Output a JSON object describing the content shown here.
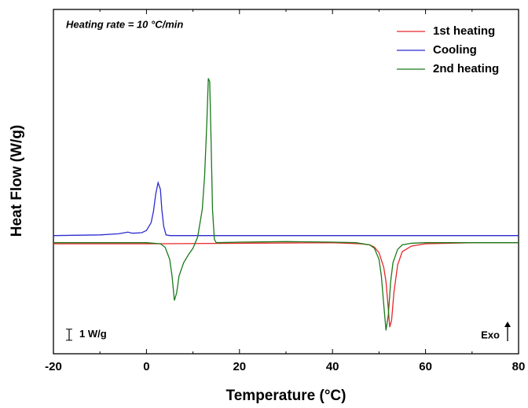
{
  "chart_data": {
    "type": "line",
    "x_label": "Temperature (°C)",
    "y_label": "Heat Flow (W/g)",
    "annotation": "Heating rate = 10 °C/min",
    "exo_label": "Exo",
    "scale_bar": {
      "value": 1,
      "label": "1 W/g"
    },
    "xlim": [
      -20,
      80
    ],
    "xticks": [
      -20,
      0,
      20,
      40,
      60,
      80
    ],
    "xminor": [
      -10,
      10,
      30,
      50,
      70
    ],
    "ylim": [
      -10,
      21
    ],
    "legend": "upper right",
    "series": [
      {
        "name": "1st heating",
        "color": "#e8262a",
        "x": [
          -20,
          0,
          20,
          40,
          46,
          48,
          49,
          50,
          51,
          51.5,
          52,
          52.3,
          52.7,
          53.2,
          54,
          55,
          57,
          60,
          70,
          80
        ],
        "values": [
          -0.1,
          -0.1,
          -0.05,
          0,
          -0.1,
          -0.2,
          -0.4,
          -0.9,
          -2.2,
          -3.5,
          -6,
          -7.6,
          -7.0,
          -4.5,
          -2.0,
          -0.8,
          -0.3,
          -0.1,
          0,
          0
        ]
      },
      {
        "name": "Cooling",
        "color": "#2b2bd0",
        "x": [
          -20,
          -10,
          -6,
          -4,
          -3,
          -1,
          0,
          1,
          1.5,
          2,
          2.5,
          3,
          3.3,
          3.7,
          4.2,
          5,
          20,
          60,
          80
        ],
        "values": [
          0.64,
          0.7,
          0.8,
          0.95,
          0.85,
          0.9,
          1.1,
          1.8,
          2.8,
          4.4,
          5.4,
          4.8,
          3.0,
          1.5,
          0.7,
          0.64,
          0.64,
          0.64,
          0.64
        ]
      },
      {
        "name": "2nd heating",
        "color": "#1a7a1a",
        "x": [
          -20,
          0,
          3,
          4,
          5,
          5.5,
          6,
          6.5,
          7,
          8,
          9,
          10,
          11,
          12,
          12.5,
          13,
          13.3,
          13.6,
          13.9,
          14.2,
          14.6,
          15,
          20,
          30,
          40,
          45,
          48,
          49,
          50,
          50.5,
          51,
          51.5,
          52,
          52.5,
          53,
          54,
          55,
          57,
          60,
          70,
          80
        ],
        "values": [
          0,
          0,
          -0.1,
          -0.4,
          -1.5,
          -3,
          -5.2,
          -4.5,
          -3,
          -1.8,
          -1.1,
          -0.5,
          0.5,
          3,
          6,
          11,
          14.8,
          14.5,
          9,
          3,
          0.3,
          0,
          0.05,
          0.1,
          0.05,
          0,
          -0.2,
          -0.5,
          -1.5,
          -3,
          -5.5,
          -7.9,
          -6.5,
          -3.5,
          -1.8,
          -0.6,
          -0.2,
          -0.05,
          0,
          0,
          0
        ]
      }
    ]
  }
}
